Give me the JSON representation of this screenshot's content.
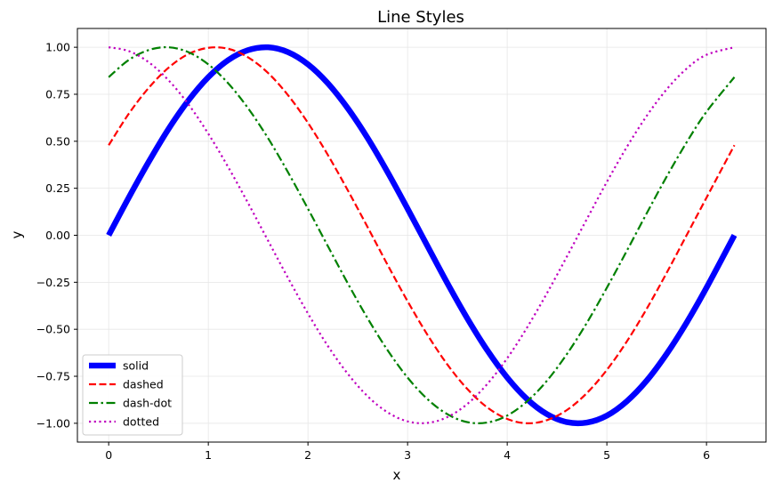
{
  "chart_data": {
    "type": "line",
    "title": "Line Styles",
    "xlabel": "x",
    "ylabel": "y",
    "xlim": [
      -0.314,
      6.597
    ],
    "ylim": [
      -1.1,
      1.1
    ],
    "x_ticks": [
      0,
      1,
      2,
      3,
      4,
      5,
      6
    ],
    "x_tick_labels": [
      "0",
      "1",
      "2",
      "3",
      "4",
      "5",
      "6"
    ],
    "y_ticks": [
      -1.0,
      -0.75,
      -0.5,
      -0.25,
      0.0,
      0.25,
      0.5,
      0.75,
      1.0
    ],
    "y_tick_labels": [
      "−1.00",
      "−0.75",
      "−0.50",
      "−0.25",
      "0.00",
      "0.25",
      "0.50",
      "0.75",
      "1.00"
    ],
    "grid": true,
    "legend_position": "lower-left",
    "series": [
      {
        "name": "solid",
        "color": "#0000ff",
        "style": "solid",
        "width": "thick",
        "x": [
          0.0,
          0.2,
          0.4,
          0.6,
          0.8,
          1.0,
          1.2,
          1.4,
          1.6,
          1.8,
          2.0,
          2.2,
          2.4,
          2.6,
          2.8,
          3.0,
          3.2,
          3.4,
          3.6,
          3.8,
          4.0,
          4.2,
          4.4,
          4.6,
          4.8,
          5.0,
          5.2,
          5.4,
          5.6,
          5.8,
          6.0,
          6.28
        ],
        "y": [
          0.0,
          0.199,
          0.389,
          0.565,
          0.717,
          0.841,
          0.932,
          0.985,
          1.0,
          0.974,
          0.909,
          0.808,
          0.675,
          0.516,
          0.335,
          0.141,
          -0.058,
          -0.256,
          -0.443,
          -0.612,
          -0.757,
          -0.872,
          -0.952,
          -0.994,
          -0.996,
          -0.959,
          -0.883,
          -0.773,
          -0.631,
          -0.465,
          -0.279,
          0.0
        ]
      },
      {
        "name": "dashed",
        "color": "#ff0000",
        "style": "dashed",
        "width": "normal",
        "x": [
          0.0,
          0.2,
          0.4,
          0.6,
          0.8,
          1.0,
          1.2,
          1.4,
          1.6,
          1.8,
          2.0,
          2.2,
          2.4,
          2.6,
          2.8,
          3.0,
          3.2,
          3.4,
          3.6,
          3.8,
          4.0,
          4.2,
          4.4,
          4.6,
          4.8,
          5.0,
          5.2,
          5.4,
          5.6,
          5.8,
          6.0,
          6.28
        ],
        "y": [
          0.479,
          0.645,
          0.783,
          0.891,
          0.964,
          0.997,
          0.992,
          0.946,
          0.863,
          0.745,
          0.598,
          0.427,
          0.239,
          0.042,
          -0.158,
          -0.351,
          -0.53,
          -0.688,
          -0.818,
          -0.916,
          -0.977,
          -1.0,
          -0.983,
          -0.929,
          -0.839,
          -0.716,
          -0.565,
          -0.391,
          -0.2,
          0.0,
          0.2,
          0.479
        ]
      },
      {
        "name": "dash-dot",
        "color": "#008000",
        "style": "dashdot",
        "width": "normal",
        "x": [
          0.0,
          0.2,
          0.4,
          0.6,
          0.8,
          1.0,
          1.2,
          1.4,
          1.6,
          1.8,
          2.0,
          2.2,
          2.4,
          2.6,
          2.8,
          3.0,
          3.2,
          3.4,
          3.6,
          3.8,
          4.0,
          4.2,
          4.4,
          4.6,
          4.8,
          5.0,
          5.2,
          5.4,
          5.6,
          5.8,
          6.0,
          6.28
        ],
        "y": [
          0.841,
          0.932,
          0.985,
          1.0,
          0.974,
          0.909,
          0.808,
          0.675,
          0.516,
          0.335,
          0.141,
          -0.058,
          -0.256,
          -0.443,
          -0.612,
          -0.757,
          -0.872,
          -0.952,
          -0.994,
          -0.996,
          -0.959,
          -0.883,
          -0.773,
          -0.631,
          -0.465,
          -0.279,
          -0.083,
          0.117,
          0.312,
          0.494,
          0.657,
          0.841
        ]
      },
      {
        "name": "dotted",
        "color": "#bf00bf",
        "style": "dotted",
        "width": "normal",
        "x": [
          0.0,
          0.2,
          0.4,
          0.6,
          0.8,
          1.0,
          1.2,
          1.4,
          1.6,
          1.8,
          2.0,
          2.2,
          2.4,
          2.6,
          2.8,
          3.0,
          3.2,
          3.4,
          3.6,
          3.8,
          4.0,
          4.2,
          4.4,
          4.6,
          4.8,
          5.0,
          5.2,
          5.4,
          5.6,
          5.8,
          6.0,
          6.28
        ],
        "y": [
          1.0,
          0.98,
          0.921,
          0.825,
          0.697,
          0.54,
          0.362,
          0.17,
          -0.029,
          -0.227,
          -0.416,
          -0.589,
          -0.737,
          -0.857,
          -0.942,
          -0.99,
          -0.998,
          -0.967,
          -0.897,
          -0.791,
          -0.654,
          -0.49,
          -0.307,
          -0.112,
          0.087,
          0.284,
          0.469,
          0.635,
          0.776,
          0.886,
          0.96,
          1.0
        ]
      }
    ]
  }
}
